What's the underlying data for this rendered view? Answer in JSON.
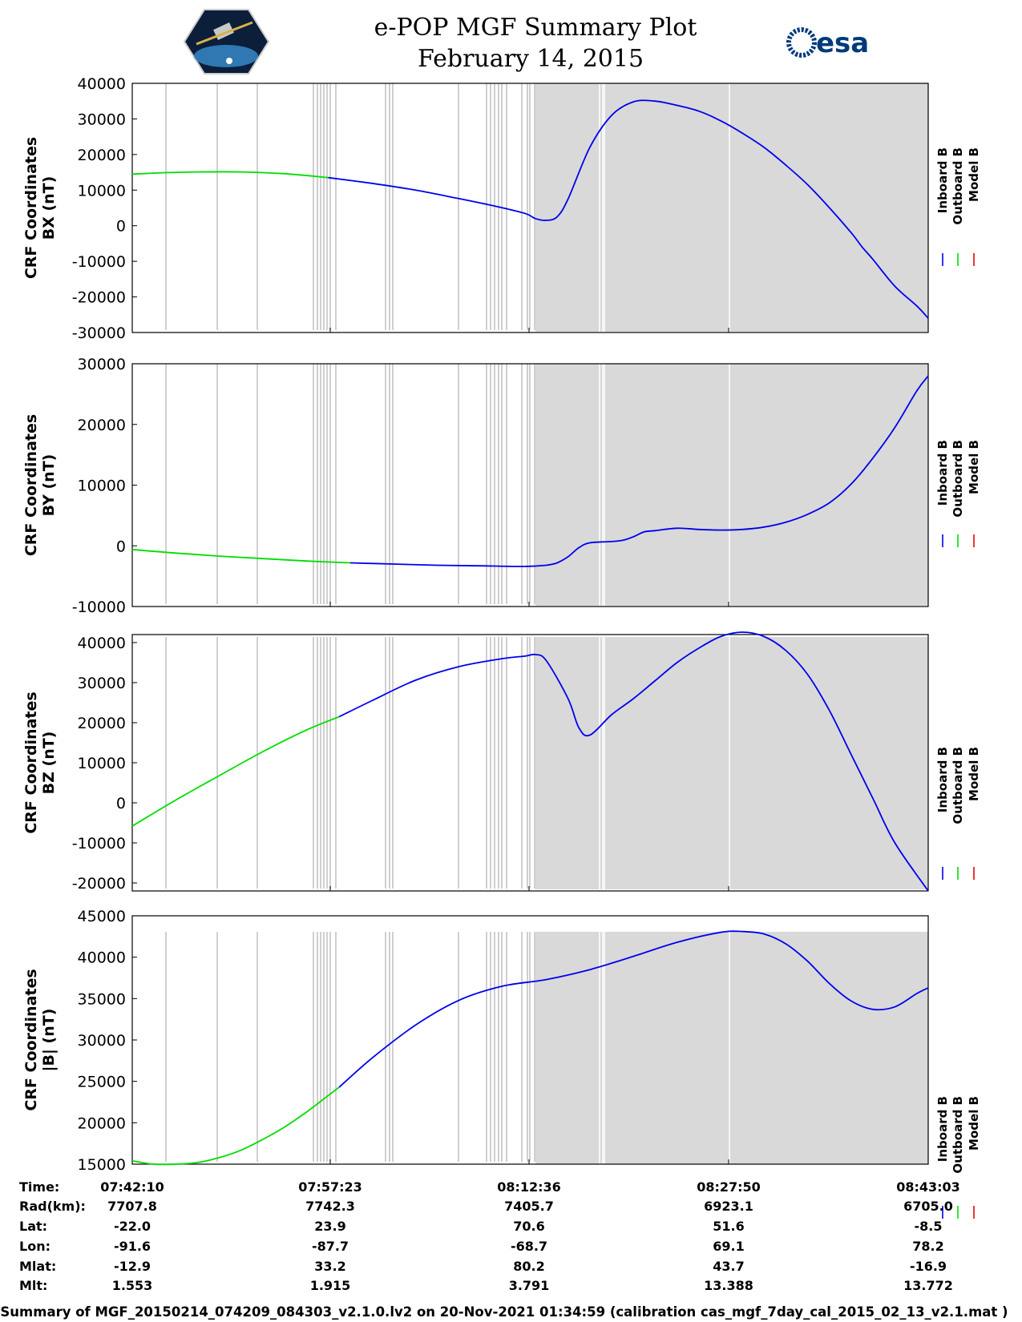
{
  "header": {
    "title": "e-POP MGF Summary Plot",
    "date": "February 14, 2015",
    "left_logo": "cassiope-satellite-logo",
    "right_logo_text": "esa"
  },
  "legend": {
    "inboard": "Inboard B",
    "outboard": "Outboard B",
    "model": "Model B"
  },
  "colors": {
    "inboard": "#0000ee",
    "outboard": "#00dd00",
    "model": "#ee0000",
    "shade": "#d9d9d9"
  },
  "chart_data": [
    {
      "type": "line",
      "ylabel": [
        "CRF Coordinates",
        "BX (nT)"
      ],
      "ylim": [
        -30000,
        40000
      ],
      "yticks": [
        "40000",
        "30000",
        "20000",
        "10000",
        "0",
        "-10000",
        "-20000",
        "-30000"
      ],
      "xlim": [
        0,
        3653
      ],
      "series": [
        {
          "name": "Outboard B",
          "x": [
            0,
            150,
            300,
            500,
            700,
            900
          ],
          "values": [
            14500,
            14900,
            15100,
            15100,
            14600,
            13500
          ]
        },
        {
          "name": "Inboard B",
          "x": [
            900,
            1100,
            1300,
            1500,
            1650,
            1800,
            1850,
            1900,
            1950,
            2000,
            2100,
            2200,
            2300,
            2400,
            2500,
            2600,
            2700,
            2800,
            2900,
            3000,
            3100,
            3200,
            3300,
            3350,
            3400,
            3500,
            3600,
            3653
          ],
          "values": [
            13500,
            11900,
            10000,
            7600,
            5700,
            3500,
            2000,
            1500,
            2500,
            7500,
            22000,
            31000,
            34800,
            35000,
            33800,
            32200,
            29500,
            26000,
            22000,
            17000,
            11500,
            5000,
            -2000,
            -6000,
            -9500,
            -17000,
            -22500,
            -26000
          ]
        }
      ]
    },
    {
      "type": "line",
      "ylabel": [
        "CRF Coordinates",
        "BY (nT)"
      ],
      "ylim": [
        -10000,
        30000
      ],
      "yticks": [
        "30000",
        "20000",
        "10000",
        "0",
        "-10000"
      ],
      "xlim": [
        0,
        3653
      ],
      "series": [
        {
          "name": "Outboard B",
          "x": [
            0,
            200,
            400,
            600,
            800,
            1000
          ],
          "values": [
            -600,
            -1200,
            -1700,
            -2100,
            -2500,
            -2800
          ]
        },
        {
          "name": "Inboard B",
          "x": [
            1000,
            1200,
            1400,
            1600,
            1800,
            1900,
            1950,
            2000,
            2050,
            2100,
            2200,
            2250,
            2300,
            2350,
            2400,
            2500,
            2600,
            2700,
            2800,
            2900,
            3000,
            3100,
            3200,
            3300,
            3400,
            3500,
            3600,
            3653
          ],
          "values": [
            -2800,
            -3000,
            -3200,
            -3300,
            -3400,
            -3200,
            -2800,
            -1800,
            -300,
            500,
            700,
            900,
            1500,
            2300,
            2500,
            2900,
            2700,
            2600,
            2700,
            3100,
            3900,
            5200,
            7100,
            10200,
            14500,
            19500,
            25500,
            28000
          ]
        }
      ]
    },
    {
      "type": "line",
      "ylabel": [
        "CRF Coordinates",
        "BZ (nT)"
      ],
      "ylim": [
        -22000,
        42000
      ],
      "yticks": [
        "40000",
        "30000",
        "20000",
        "10000",
        "0",
        "-10000",
        "-20000"
      ],
      "xlim": [
        0,
        3653
      ],
      "series": [
        {
          "name": "Outboard B",
          "x": [
            0,
            200,
            400,
            600,
            800,
            950
          ],
          "values": [
            -5800,
            700,
            6800,
            12800,
            18200,
            21500
          ]
        },
        {
          "name": "Inboard B",
          "x": [
            950,
            1100,
            1300,
            1500,
            1700,
            1800,
            1850,
            1900,
            2000,
            2050,
            2100,
            2200,
            2300,
            2400,
            2500,
            2600,
            2700,
            2800,
            2900,
            3000,
            3100,
            3200,
            3300,
            3400,
            3500,
            3653
          ],
          "values": [
            21500,
            25500,
            30600,
            34000,
            36000,
            36600,
            37000,
            35500,
            26000,
            18700,
            16900,
            22000,
            26000,
            30500,
            35000,
            38600,
            41500,
            42600,
            41500,
            38000,
            32000,
            23000,
            12000,
            1000,
            -10000,
            -22000
          ]
        }
      ]
    },
    {
      "type": "line",
      "ylabel": [
        "CRF Coordinates",
        "|B| (nT)"
      ],
      "ylim": [
        15000,
        45000
      ],
      "yticks": [
        "45000",
        "40000",
        "35000",
        "30000",
        "25000",
        "20000",
        "15000"
      ],
      "xlim": [
        0,
        3653
      ],
      "series": [
        {
          "name": "Outboard B",
          "x": [
            0,
            100,
            200,
            300,
            400,
            500,
            600,
            700,
            800,
            900,
            950
          ],
          "values": [
            15400,
            15000,
            15000,
            15200,
            15800,
            16700,
            18000,
            19500,
            21300,
            23300,
            24300
          ]
        },
        {
          "name": "Inboard B",
          "x": [
            950,
            1100,
            1300,
            1500,
            1700,
            1900,
            2100,
            2300,
            2500,
            2700,
            2800,
            2900,
            3000,
            3100,
            3200,
            3300,
            3400,
            3500,
            3600,
            3653
          ],
          "values": [
            24300,
            27800,
            31800,
            34800,
            36500,
            37300,
            38500,
            40100,
            41800,
            43000,
            43100,
            42800,
            41600,
            39500,
            36800,
            34700,
            33700,
            34000,
            35600,
            36300
          ]
        }
      ]
    }
  ],
  "bottom_table": {
    "rows": [
      {
        "label": "Time:",
        "values": [
          "07:42:10",
          "07:57:23",
          "08:12:36",
          "08:27:50",
          "08:43:03"
        ]
      },
      {
        "label": "Rad(km):",
        "values": [
          "7707.8",
          "7742.3",
          "7405.7",
          "6923.1",
          "6705.0"
        ]
      },
      {
        "label": "Lat:",
        "values": [
          "-22.0",
          "23.9",
          "70.6",
          "51.6",
          "-8.5"
        ]
      },
      {
        "label": "Lon:",
        "values": [
          "-91.6",
          "-87.7",
          "-68.7",
          "69.1",
          "78.2"
        ]
      },
      {
        "label": "Mlat:",
        "values": [
          "-12.9",
          "33.2",
          "80.2",
          "43.7",
          "-16.9"
        ]
      },
      {
        "label": "Mlt:",
        "values": [
          "1.553",
          "1.915",
          "3.791",
          "13.388",
          "13.772"
        ]
      }
    ]
  },
  "footer": "Summary of MGF_20150214_074209_084303_v2.1.0.lv2 on 20-Nov-2021 01:34:59 (calibration cas_mgf_7day_cal_2015_02_13_v2.1.mat )"
}
